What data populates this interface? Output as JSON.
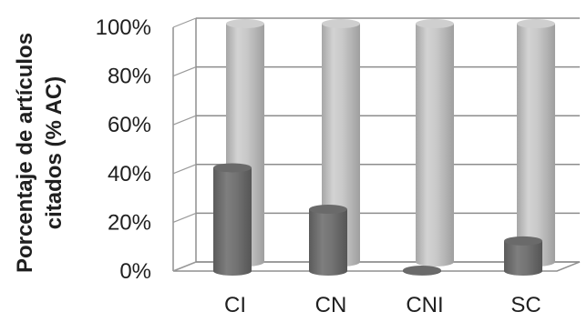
{
  "chart_data": {
    "type": "bar",
    "title": "",
    "xlabel": "",
    "ylabel_lines": [
      "Porcentaje de artículos",
      "citados  (% AC)"
    ],
    "categories": [
      "CI",
      "CN",
      "CNI",
      "SC"
    ],
    "series": [
      {
        "values": [
          42,
          25,
          0,
          12
        ],
        "color": "#6f6f6f"
      },
      {
        "values": [
          100,
          100,
          100,
          100
        ],
        "color": "#bdbdbd"
      }
    ],
    "ylim": [
      0,
      100
    ],
    "yticks": [
      0,
      20,
      40,
      60,
      80,
      100
    ],
    "ytick_labels": [
      "0%",
      "20%",
      "40%",
      "60%",
      "80%",
      "100%"
    ],
    "grid": true,
    "legend": "none"
  }
}
